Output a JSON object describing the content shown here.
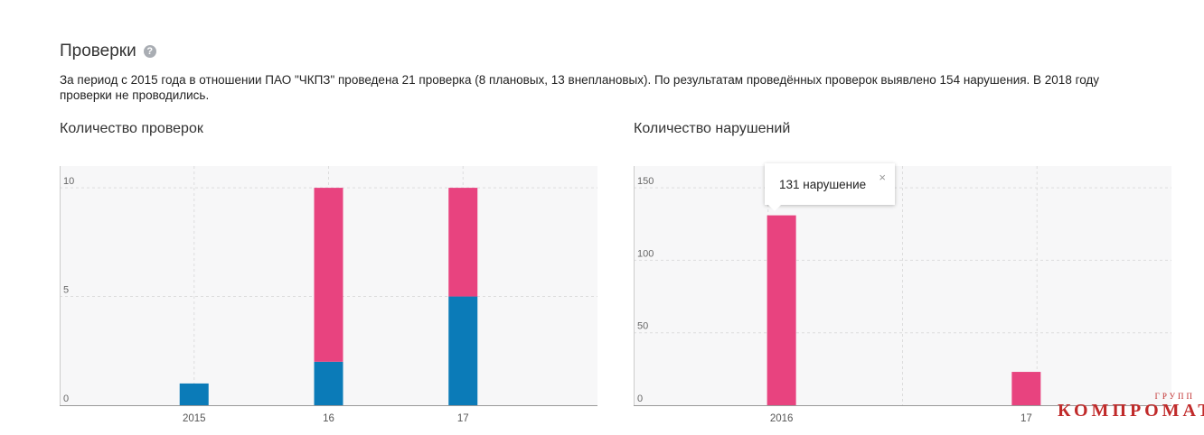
{
  "section": {
    "title": "Проверки",
    "help_icon": "?",
    "summary": "За период с 2015 года в отношении ПАО \"ЧКПЗ\" проведена 21 проверка (8 плановых, 13 внеплановых). По результатам проведённых проверок выявлено 154 нарушения. В 2018 году проверки не проводились."
  },
  "colors": {
    "pink": "#e8437f",
    "blue": "#0b7bb8",
    "grid": "#dddddd",
    "background": "#f7f7f8"
  },
  "chart_data": [
    {
      "type": "bar",
      "stacked": true,
      "title": "Количество проверок",
      "categories": [
        "2015",
        "16",
        "17"
      ],
      "series": [
        {
          "color": "#0b7bb8",
          "values": [
            1,
            2,
            5
          ]
        },
        {
          "color": "#e8437f",
          "values": [
            0,
            8,
            5
          ]
        }
      ],
      "ylim": [
        0,
        11
      ],
      "yticks": [
        0,
        5,
        10
      ],
      "grid": true
    },
    {
      "type": "bar",
      "title": "Количество нарушений",
      "categories": [
        "2016",
        "17"
      ],
      "series": [
        {
          "color": "#e8437f",
          "values": [
            131,
            23
          ]
        }
      ],
      "ylim": [
        0,
        165
      ],
      "yticks": [
        0,
        50,
        100,
        150
      ],
      "grid": true
    }
  ],
  "tooltip": {
    "text": "131 нарушение",
    "close": "×"
  },
  "watermark": {
    "top": "ГРУПП",
    "main": "КОМПРОМАТ"
  }
}
